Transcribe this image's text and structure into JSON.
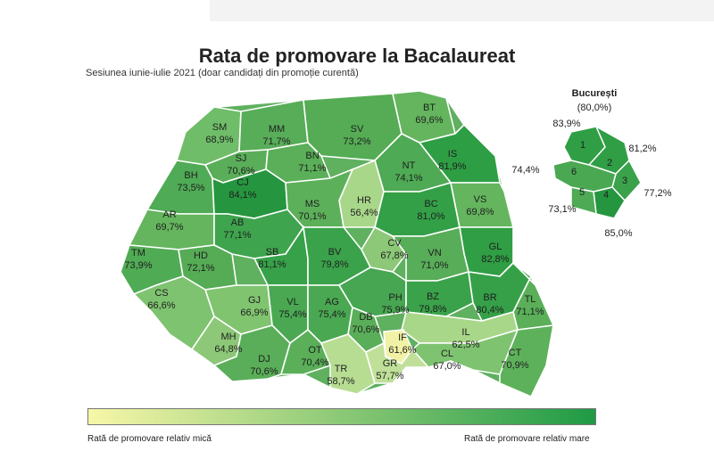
{
  "title": "Rata de promovare la Bacalaureat",
  "subtitle": "Sesiunea iunie-iulie 2021 (doar candidați din promoție curentă)",
  "bucuresti": {
    "title": "București",
    "total": "(80,0%)",
    "sectors": [
      {
        "id": "1",
        "value": "83,9%"
      },
      {
        "id": "2",
        "value": "81,2%"
      },
      {
        "id": "3",
        "value": "77,2%"
      },
      {
        "id": "4",
        "value": "85,0%"
      },
      {
        "id": "5",
        "value": "73,1%"
      },
      {
        "id": "6",
        "value": "74,4%"
      }
    ]
  },
  "counties": [
    {
      "code": "SM",
      "value": "68,9%"
    },
    {
      "code": "MM",
      "value": "71,7%"
    },
    {
      "code": "SV",
      "value": "73,2%"
    },
    {
      "code": "BT",
      "value": "69,6%"
    },
    {
      "code": "SJ",
      "value": "70,6%"
    },
    {
      "code": "BN",
      "value": "71,1%"
    },
    {
      "code": "IS",
      "value": "81,9%"
    },
    {
      "code": "NT",
      "value": "74,1%"
    },
    {
      "code": "BH",
      "value": "73,5%"
    },
    {
      "code": "CJ",
      "value": "84,1%"
    },
    {
      "code": "HR",
      "value": "56,4%"
    },
    {
      "code": "MS",
      "value": "70,1%"
    },
    {
      "code": "BC",
      "value": "81,0%"
    },
    {
      "code": "VS",
      "value": "69,8%"
    },
    {
      "code": "AR",
      "value": "69,7%"
    },
    {
      "code": "AB",
      "value": "77,1%"
    },
    {
      "code": "CV",
      "value": "67,8%"
    },
    {
      "code": "GL",
      "value": "82,8%"
    },
    {
      "code": "TM",
      "value": "73,9%"
    },
    {
      "code": "HD",
      "value": "72,1%"
    },
    {
      "code": "SB",
      "value": "81,1%"
    },
    {
      "code": "BV",
      "value": "79,8%"
    },
    {
      "code": "VN",
      "value": "71,0%"
    },
    {
      "code": "CS",
      "value": "66,6%"
    },
    {
      "code": "GJ",
      "value": "66,9%"
    },
    {
      "code": "VL",
      "value": "75,4%"
    },
    {
      "code": "AG",
      "value": "75,4%"
    },
    {
      "code": "PH",
      "value": "75,9%"
    },
    {
      "code": "BZ",
      "value": "79,8%"
    },
    {
      "code": "BR",
      "value": "80,4%"
    },
    {
      "code": "TL",
      "value": "71,1%"
    },
    {
      "code": "MH",
      "value": "64,8%"
    },
    {
      "code": "DB",
      "value": "70,6%"
    },
    {
      "code": "IL",
      "value": "62,5%"
    },
    {
      "code": "DJ",
      "value": "70,6%"
    },
    {
      "code": "OT",
      "value": "70,4%"
    },
    {
      "code": "IF",
      "value": "61,6%"
    },
    {
      "code": "CL",
      "value": "67,0%"
    },
    {
      "code": "CT",
      "value": "70,9%"
    },
    {
      "code": "TR",
      "value": "58,7%"
    },
    {
      "code": "GR",
      "value": "57,7%"
    }
  ],
  "legend": {
    "low_label": "Rată de promovare relativ mică",
    "high_label": "Rată de promovare relativ mare",
    "color_low": "#f7f7a8",
    "color_high": "#1f9a45"
  }
}
